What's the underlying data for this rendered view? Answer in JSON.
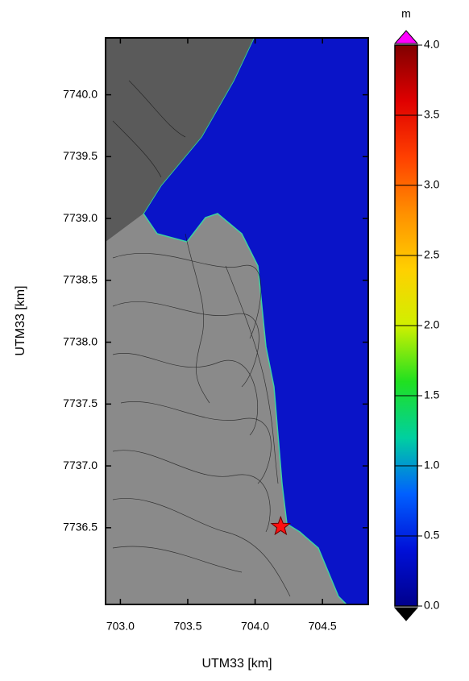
{
  "chart_data": {
    "type": "map",
    "xlabel": "UTM33 [km]",
    "ylabel": "UTM33 [km]",
    "xlim": [
      702.89,
      704.84
    ],
    "ylim": [
      7735.88,
      7740.46
    ],
    "xticks": [
      {
        "value": 703,
        "label": "703.0"
      },
      703.5,
      {
        "value": 704,
        "label": "704.0"
      },
      704.5
    ],
    "yticks": [
      7736.5,
      {
        "value": 7737,
        "label": "7737.0"
      },
      7737.5,
      {
        "value": 7738,
        "label": "7738.0"
      },
      7738.5,
      {
        "value": 7739,
        "label": "7739.0"
      },
      7739.5,
      {
        "value": 7740,
        "label": "7740.0"
      }
    ],
    "sea_color": "#0a14c8",
    "land_color": "#8a8a8a",
    "marker": {
      "x": 704.19,
      "y": 7736.51,
      "color": "#ff1010"
    },
    "colorbar": {
      "label": "m",
      "clim": [
        0,
        4
      ],
      "ticks": [
        {
          "value": 0,
          "label": "0.0"
        },
        0.5,
        {
          "value": 1,
          "label": "1.0"
        },
        1.5,
        {
          "value": 2,
          "label": "2.0"
        },
        2.5,
        {
          "value": 3,
          "label": "3.0"
        },
        3.5,
        {
          "value": 4,
          "label": "4.0"
        }
      ],
      "colors": [
        "#00008c",
        "#0010d8",
        "#0060ff",
        "#00d0a0",
        "#20e020",
        "#d0f000",
        "#ffd000",
        "#ff9000",
        "#ff4000",
        "#e00000",
        "#800000"
      ],
      "over_color": "#ff00ff",
      "under_color": "#000000"
    }
  }
}
